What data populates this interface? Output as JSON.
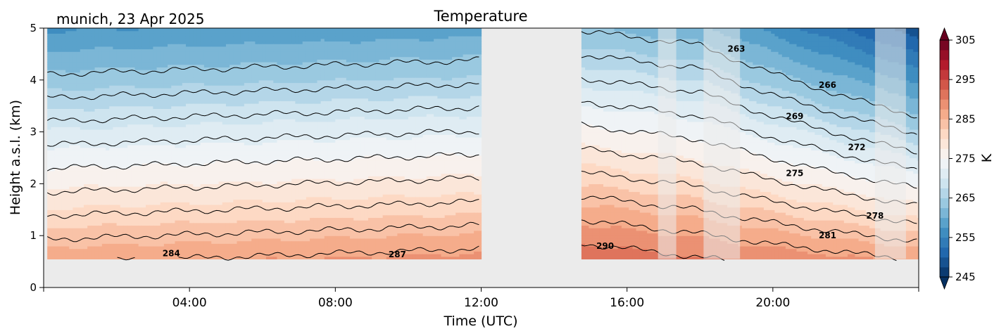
{
  "chart_data": {
    "type": "heatmap",
    "title": "Temperature",
    "subtitle": "munich, 23 Apr 2025",
    "xlabel": "Time (UTC)",
    "ylabel": "Height a.s.l. (km)",
    "xlim_hours": [
      0,
      24
    ],
    "ylim": [
      0,
      5
    ],
    "x_ticks": [
      {
        "hour": 4,
        "label": "04:00"
      },
      {
        "hour": 8,
        "label": "08:00"
      },
      {
        "hour": 12,
        "label": "12:00"
      },
      {
        "hour": 16,
        "label": "16:00"
      },
      {
        "hour": 20,
        "label": "20:00"
      }
    ],
    "y_ticks": [
      {
        "value": 0,
        "label": "0"
      },
      {
        "value": 1,
        "label": "1"
      },
      {
        "value": 2,
        "label": "2"
      },
      {
        "value": 3,
        "label": "3"
      },
      {
        "value": 4,
        "label": "4"
      },
      {
        "value": 5,
        "label": "5"
      }
    ],
    "data_min_height_km": 0.55,
    "data_segments_hours": [
      [
        0.1,
        12.0
      ],
      [
        14.75,
        24.0
      ]
    ],
    "masked_intervals_hours": [
      [
        16.85,
        17.35
      ],
      [
        18.1,
        19.1
      ],
      [
        22.8,
        23.65
      ]
    ],
    "colorbar": {
      "label": "K",
      "min": 245,
      "max": 305,
      "ticks": [
        {
          "value": 245,
          "label": "245"
        },
        {
          "value": 255,
          "label": "255"
        },
        {
          "value": 265,
          "label": "265"
        },
        {
          "value": 275,
          "label": "275"
        },
        {
          "value": 285,
          "label": "285"
        },
        {
          "value": 295,
          "label": "295"
        },
        {
          "value": 305,
          "label": "305"
        }
      ],
      "colors": [
        "#053061",
        "#2166ac",
        "#4393c3",
        "#92c5de",
        "#d1e5f0",
        "#f7f7f7",
        "#fddbc7",
        "#f4a582",
        "#d6604d",
        "#b2182b",
        "#67001f"
      ]
    },
    "contour_labels": [
      {
        "label": "263",
        "hour": 19.0,
        "height_km": 4.6
      },
      {
        "label": "266",
        "hour": 21.5,
        "height_km": 3.9
      },
      {
        "label": "269",
        "hour": 20.6,
        "height_km": 3.3
      },
      {
        "label": "272",
        "hour": 22.3,
        "height_km": 2.7
      },
      {
        "label": "275",
        "hour": 20.6,
        "height_km": 2.2
      },
      {
        "label": "278",
        "hour": 22.8,
        "height_km": 1.38
      },
      {
        "label": "281",
        "hour": 21.5,
        "height_km": 1.0
      },
      {
        "label": "284",
        "hour": 3.5,
        "height_km": 0.66
      },
      {
        "label": "287",
        "hour": 9.7,
        "height_km": 0.64
      },
      {
        "label": "290",
        "hour": 15.4,
        "height_km": 0.8
      }
    ],
    "contour_levels_K": [
      263,
      266,
      269,
      272,
      275,
      278,
      281,
      284,
      287,
      290
    ],
    "grid": false
  }
}
